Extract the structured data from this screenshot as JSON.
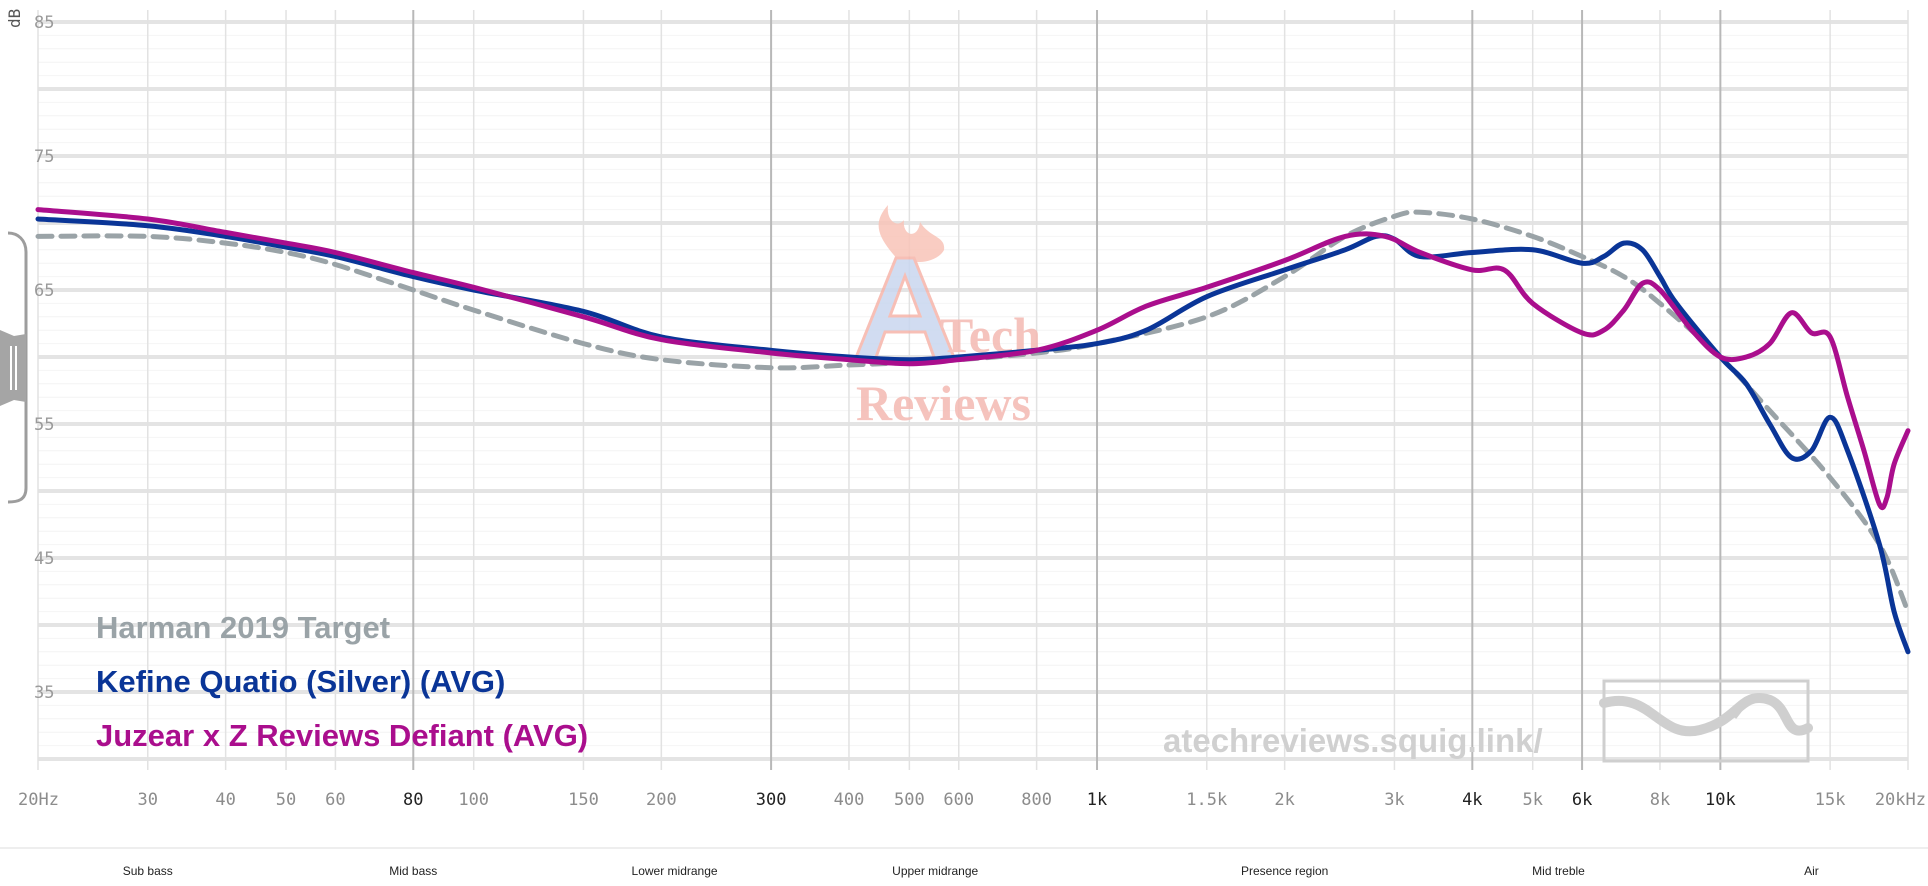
{
  "chart_data": {
    "type": "line",
    "title": "",
    "xlabel": "",
    "ylabel": "dB",
    "x_scale": "log",
    "xlim": [
      20,
      20000
    ],
    "ylim": [
      30,
      85
    ],
    "y_ticks": [
      {
        "value": 85,
        "label": "85"
      },
      {
        "value": 75,
        "label": "75"
      },
      {
        "value": 65,
        "label": "65"
      },
      {
        "value": 55,
        "label": "55"
      },
      {
        "value": 45,
        "label": "45"
      },
      {
        "value": 35,
        "label": "35"
      }
    ],
    "x_ticks": [
      {
        "value": 20,
        "label": "20Hz",
        "strong": false
      },
      {
        "value": 30,
        "label": "30",
        "strong": false
      },
      {
        "value": 40,
        "label": "40",
        "strong": false
      },
      {
        "value": 50,
        "label": "50",
        "strong": false
      },
      {
        "value": 60,
        "label": "60",
        "strong": false
      },
      {
        "value": 80,
        "label": "80",
        "strong": true
      },
      {
        "value": 100,
        "label": "100",
        "strong": false
      },
      {
        "value": 150,
        "label": "150",
        "strong": false
      },
      {
        "value": 200,
        "label": "200",
        "strong": false
      },
      {
        "value": 300,
        "label": "300",
        "strong": true
      },
      {
        "value": 400,
        "label": "400",
        "strong": false
      },
      {
        "value": 500,
        "label": "500",
        "strong": false
      },
      {
        "value": 600,
        "label": "600",
        "strong": false
      },
      {
        "value": 800,
        "label": "800",
        "strong": false
      },
      {
        "value": 1000,
        "label": "1k",
        "strong": true
      },
      {
        "value": 1500,
        "label": "1.5k",
        "strong": false
      },
      {
        "value": 2000,
        "label": "2k",
        "strong": false
      },
      {
        "value": 3000,
        "label": "3k",
        "strong": false
      },
      {
        "value": 4000,
        "label": "4k",
        "strong": true
      },
      {
        "value": 5000,
        "label": "5k",
        "strong": false
      },
      {
        "value": 6000,
        "label": "6k",
        "strong": true
      },
      {
        "value": 8000,
        "label": "8k",
        "strong": false
      },
      {
        "value": 10000,
        "label": "10k",
        "strong": true
      },
      {
        "value": 15000,
        "label": "15k",
        "strong": false
      },
      {
        "value": 20000,
        "label": "20kHz",
        "strong": false
      }
    ],
    "grid": true,
    "legend_position": "bottom-left",
    "series": [
      {
        "name": "Harman 2019 Target",
        "color": "#9aa3a7",
        "style": "dashed",
        "points": [
          [
            20,
            69
          ],
          [
            30,
            69
          ],
          [
            40,
            68.5
          ],
          [
            50,
            67.8
          ],
          [
            60,
            66.9
          ],
          [
            80,
            65
          ],
          [
            100,
            63.5
          ],
          [
            150,
            61
          ],
          [
            200,
            59.8
          ],
          [
            300,
            59.2
          ],
          [
            400,
            59.4
          ],
          [
            500,
            59.6
          ],
          [
            600,
            59.8
          ],
          [
            800,
            60.3
          ],
          [
            1000,
            61
          ],
          [
            1500,
            63
          ],
          [
            2000,
            66
          ],
          [
            2500,
            69
          ],
          [
            3000,
            70.5
          ],
          [
            3300,
            70.8
          ],
          [
            4000,
            70.3
          ],
          [
            5000,
            69
          ],
          [
            6000,
            67.5
          ],
          [
            7000,
            66
          ],
          [
            8000,
            64
          ],
          [
            10000,
            60
          ],
          [
            12000,
            56
          ],
          [
            15000,
            51
          ],
          [
            18000,
            46
          ],
          [
            20000,
            41
          ]
        ]
      },
      {
        "name": "Kefine Quatio (Silver) (AVG)",
        "color": "#0a3597",
        "style": "solid",
        "points": [
          [
            20,
            70.3
          ],
          [
            30,
            69.8
          ],
          [
            40,
            69
          ],
          [
            50,
            68.2
          ],
          [
            60,
            67.5
          ],
          [
            80,
            66
          ],
          [
            100,
            65
          ],
          [
            150,
            63.4
          ],
          [
            200,
            61.5
          ],
          [
            300,
            60.5
          ],
          [
            400,
            60
          ],
          [
            500,
            59.8
          ],
          [
            600,
            60
          ],
          [
            800,
            60.5
          ],
          [
            1000,
            61
          ],
          [
            1200,
            62
          ],
          [
            1500,
            64.5
          ],
          [
            2000,
            66.5
          ],
          [
            2500,
            68
          ],
          [
            2800,
            69
          ],
          [
            3000,
            68.8
          ],
          [
            3300,
            67.5
          ],
          [
            4000,
            67.8
          ],
          [
            5000,
            68
          ],
          [
            6000,
            67
          ],
          [
            6500,
            67.5
          ],
          [
            7000,
            68.5
          ],
          [
            7500,
            68
          ],
          [
            8000,
            66
          ],
          [
            8500,
            64
          ],
          [
            10000,
            60
          ],
          [
            11000,
            58
          ],
          [
            12000,
            55
          ],
          [
            13000,
            52.5
          ],
          [
            14000,
            53
          ],
          [
            15000,
            55.5
          ],
          [
            16000,
            53
          ],
          [
            18000,
            46
          ],
          [
            19000,
            41
          ],
          [
            20000,
            38
          ]
        ]
      },
      {
        "name": "Juzear x Z Reviews Defiant (AVG)",
        "color": "#aa0e8d",
        "style": "solid",
        "points": [
          [
            20,
            71
          ],
          [
            30,
            70.3
          ],
          [
            40,
            69.3
          ],
          [
            50,
            68.5
          ],
          [
            60,
            67.8
          ],
          [
            80,
            66.3
          ],
          [
            100,
            65.2
          ],
          [
            150,
            63
          ],
          [
            200,
            61.3
          ],
          [
            300,
            60.3
          ],
          [
            400,
            59.8
          ],
          [
            500,
            59.5
          ],
          [
            600,
            59.8
          ],
          [
            800,
            60.5
          ],
          [
            1000,
            62
          ],
          [
            1200,
            63.8
          ],
          [
            1500,
            65.2
          ],
          [
            2000,
            67.2
          ],
          [
            2500,
            69
          ],
          [
            2900,
            69
          ],
          [
            3300,
            67.8
          ],
          [
            4000,
            66.5
          ],
          [
            4500,
            66.5
          ],
          [
            5000,
            64
          ],
          [
            6000,
            61.8
          ],
          [
            6500,
            62
          ],
          [
            7000,
            63.5
          ],
          [
            7500,
            65.5
          ],
          [
            8000,
            65
          ],
          [
            9000,
            62
          ],
          [
            10000,
            60
          ],
          [
            11000,
            60
          ],
          [
            12000,
            61
          ],
          [
            13000,
            63.3
          ],
          [
            14000,
            61.8
          ],
          [
            15000,
            61.5
          ],
          [
            16000,
            57
          ],
          [
            17000,
            53
          ],
          [
            18000,
            49
          ],
          [
            18500,
            49.5
          ],
          [
            19000,
            52
          ],
          [
            20000,
            54.5
          ]
        ]
      }
    ]
  },
  "watermark": {
    "logo_line1": "Tech",
    "logo_line2": "Reviews",
    "url": "atechreviews.squig.link/"
  },
  "frequency_regions": [
    {
      "label": "Sub bass",
      "center_freq": 30
    },
    {
      "label": "Mid bass",
      "center_freq": 80
    },
    {
      "label": "Lower midrange",
      "center_freq": 210
    },
    {
      "label": "Upper midrange",
      "center_freq": 550
    },
    {
      "label": "Presence region",
      "center_freq": 2000
    },
    {
      "label": "Mid treble",
      "center_freq": 5500
    },
    {
      "label": "Air",
      "center_freq": 14000
    }
  ]
}
